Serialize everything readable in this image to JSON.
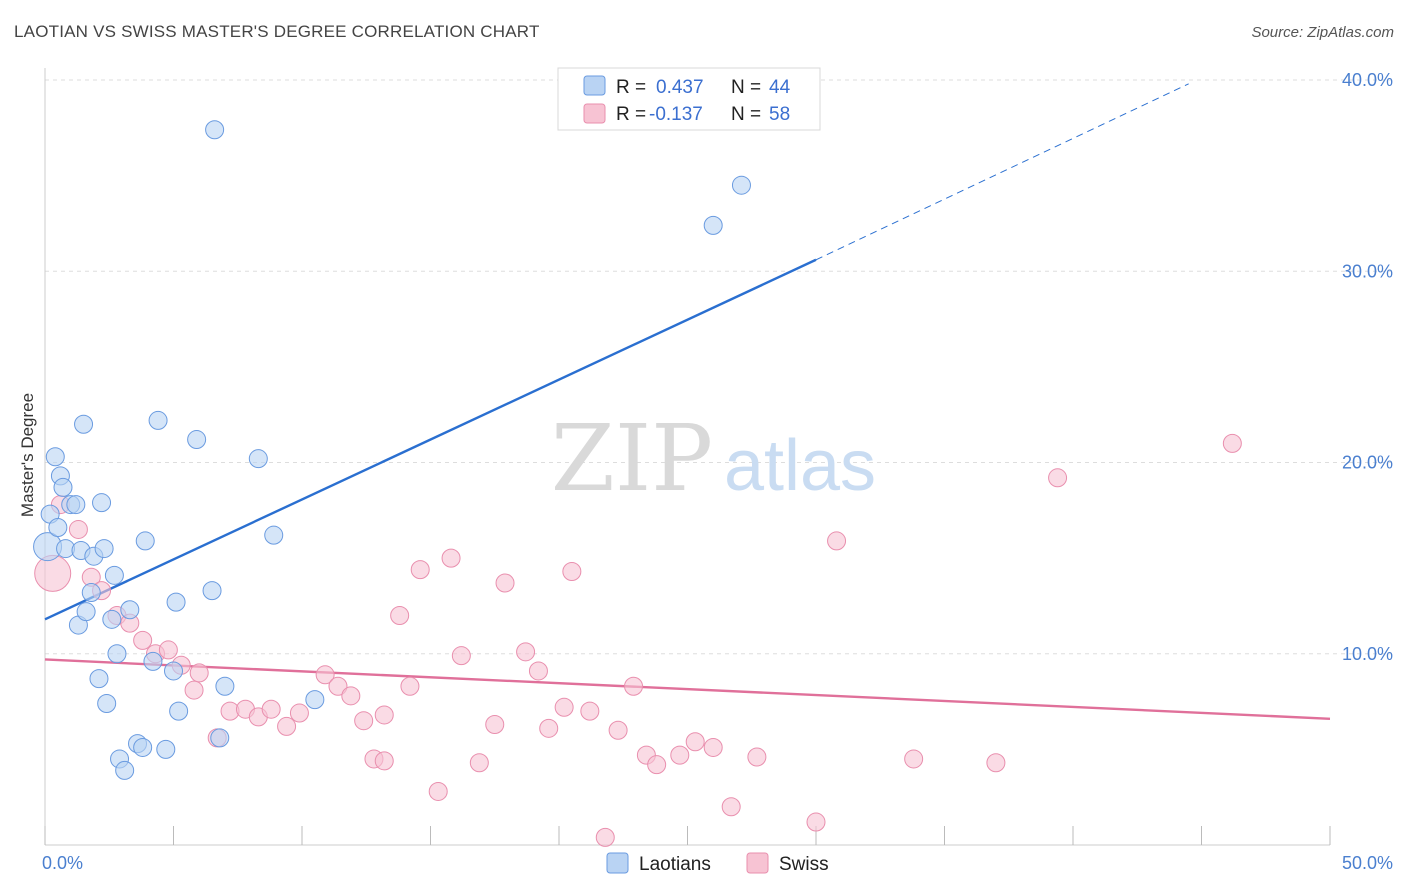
{
  "header": {
    "title": "LAOTIAN VS SWISS MASTER'S DEGREE CORRELATION CHART",
    "source": "Source: ZipAtlas.com"
  },
  "watermark": {
    "zip": "ZIP",
    "atlas": "atlas"
  },
  "legend": {
    "rows": [
      {
        "r_label": "R =",
        "r_value": "0.437",
        "n_label": "N =",
        "n_value": "44"
      },
      {
        "r_label": "R =",
        "r_value": "-0.137",
        "n_label": "N =",
        "n_value": "58"
      }
    ]
  },
  "colors": {
    "laotians_fill": "#b9d3f3",
    "laotians_stroke": "#6a9be0",
    "laotians_line": "#2a6fd0",
    "swiss_fill": "#f7c3d3",
    "swiss_stroke": "#e98fae",
    "swiss_line": "#e0709a",
    "grid": "#dddddd",
    "tick_text": "#4a7fcf"
  },
  "chart_data": {
    "type": "scatter",
    "title": "LAOTIAN VS SWISS MASTER'S DEGREE CORRELATION CHART",
    "ylabel": "Master's Degree",
    "xlabel": "",
    "xlim": [
      0,
      50
    ],
    "ylim": [
      0,
      40
    ],
    "x_ticks": [
      "0.0%",
      "50.0%"
    ],
    "y_ticks": [
      {
        "value": 10,
        "label": "10.0%"
      },
      {
        "value": 20,
        "label": "20.0%"
      },
      {
        "value": 30,
        "label": "30.0%"
      },
      {
        "value": 40,
        "label": "40.0%"
      }
    ],
    "grid": true,
    "legend_position": "top-center",
    "series": [
      {
        "name": "Laotians",
        "r": 0.437,
        "n": 44,
        "trend": {
          "x0": 0,
          "y0": 11.8,
          "x1": 30,
          "y1": 30.6,
          "dash_to_x": 44.5,
          "dash_to_y": 39.8
        },
        "points": [
          {
            "x": 0.1,
            "y": 15.6,
            "s": 14
          },
          {
            "x": 0.2,
            "y": 17.3,
            "s": 9
          },
          {
            "x": 0.4,
            "y": 20.3,
            "s": 9
          },
          {
            "x": 0.5,
            "y": 16.6,
            "s": 9
          },
          {
            "x": 0.6,
            "y": 19.3,
            "s": 9
          },
          {
            "x": 0.7,
            "y": 18.7,
            "s": 9
          },
          {
            "x": 0.8,
            "y": 15.5,
            "s": 9
          },
          {
            "x": 1.0,
            "y": 17.8,
            "s": 9
          },
          {
            "x": 1.3,
            "y": 11.5,
            "s": 9
          },
          {
            "x": 1.4,
            "y": 15.4,
            "s": 9
          },
          {
            "x": 1.5,
            "y": 22.0,
            "s": 9
          },
          {
            "x": 1.6,
            "y": 12.2,
            "s": 9
          },
          {
            "x": 1.8,
            "y": 13.2,
            "s": 9
          },
          {
            "x": 1.9,
            "y": 15.1,
            "s": 9
          },
          {
            "x": 2.1,
            "y": 8.7,
            "s": 9
          },
          {
            "x": 2.2,
            "y": 17.9,
            "s": 9
          },
          {
            "x": 2.3,
            "y": 15.5,
            "s": 9
          },
          {
            "x": 2.4,
            "y": 7.4,
            "s": 9
          },
          {
            "x": 2.6,
            "y": 11.8,
            "s": 9
          },
          {
            "x": 2.7,
            "y": 14.1,
            "s": 9
          },
          {
            "x": 2.8,
            "y": 10.0,
            "s": 9
          },
          {
            "x": 2.9,
            "y": 4.5,
            "s": 9
          },
          {
            "x": 3.1,
            "y": 3.9,
            "s": 9
          },
          {
            "x": 3.3,
            "y": 12.3,
            "s": 9
          },
          {
            "x": 3.6,
            "y": 5.3,
            "s": 9
          },
          {
            "x": 3.8,
            "y": 5.1,
            "s": 9
          },
          {
            "x": 3.9,
            "y": 15.9,
            "s": 9
          },
          {
            "x": 4.2,
            "y": 9.6,
            "s": 9
          },
          {
            "x": 4.4,
            "y": 22.2,
            "s": 9
          },
          {
            "x": 4.7,
            "y": 5.0,
            "s": 9
          },
          {
            "x": 5.0,
            "y": 9.1,
            "s": 9
          },
          {
            "x": 5.1,
            "y": 12.7,
            "s": 9
          },
          {
            "x": 5.2,
            "y": 7.0,
            "s": 9
          },
          {
            "x": 5.9,
            "y": 21.2,
            "s": 9
          },
          {
            "x": 6.5,
            "y": 13.3,
            "s": 9
          },
          {
            "x": 6.6,
            "y": 37.4,
            "s": 9
          },
          {
            "x": 6.8,
            "y": 5.6,
            "s": 9
          },
          {
            "x": 7.0,
            "y": 8.3,
            "s": 9
          },
          {
            "x": 8.3,
            "y": 20.2,
            "s": 9
          },
          {
            "x": 8.9,
            "y": 16.2,
            "s": 9
          },
          {
            "x": 10.5,
            "y": 7.6,
            "s": 9
          },
          {
            "x": 26.0,
            "y": 32.4,
            "s": 9
          },
          {
            "x": 27.1,
            "y": 34.5,
            "s": 9
          },
          {
            "x": 1.2,
            "y": 17.8,
            "s": 9
          }
        ]
      },
      {
        "name": "Swiss",
        "r": -0.137,
        "n": 58,
        "trend": {
          "x0": 0,
          "y0": 9.7,
          "x1": 50,
          "y1": 6.6
        },
        "points": [
          {
            "x": 0.3,
            "y": 14.2,
            "s": 18
          },
          {
            "x": 0.6,
            "y": 17.8,
            "s": 9
          },
          {
            "x": 1.3,
            "y": 16.5,
            "s": 9
          },
          {
            "x": 1.8,
            "y": 14.0,
            "s": 9
          },
          {
            "x": 2.2,
            "y": 13.3,
            "s": 9
          },
          {
            "x": 2.8,
            "y": 12.0,
            "s": 9
          },
          {
            "x": 3.3,
            "y": 11.6,
            "s": 9
          },
          {
            "x": 3.8,
            "y": 10.7,
            "s": 9
          },
          {
            "x": 4.3,
            "y": 10.0,
            "s": 9
          },
          {
            "x": 4.8,
            "y": 10.2,
            "s": 9
          },
          {
            "x": 5.3,
            "y": 9.4,
            "s": 9
          },
          {
            "x": 6.0,
            "y": 9.0,
            "s": 9
          },
          {
            "x": 5.8,
            "y": 8.1,
            "s": 9
          },
          {
            "x": 7.2,
            "y": 7.0,
            "s": 9
          },
          {
            "x": 7.8,
            "y": 7.1,
            "s": 9
          },
          {
            "x": 8.3,
            "y": 6.7,
            "s": 9
          },
          {
            "x": 8.8,
            "y": 7.1,
            "s": 9
          },
          {
            "x": 9.4,
            "y": 6.2,
            "s": 9
          },
          {
            "x": 9.9,
            "y": 6.9,
            "s": 9
          },
          {
            "x": 10.9,
            "y": 8.9,
            "s": 9
          },
          {
            "x": 11.4,
            "y": 8.3,
            "s": 9
          },
          {
            "x": 11.9,
            "y": 7.8,
            "s": 9
          },
          {
            "x": 12.4,
            "y": 6.5,
            "s": 9
          },
          {
            "x": 12.8,
            "y": 4.5,
            "s": 9
          },
          {
            "x": 13.2,
            "y": 6.8,
            "s": 9
          },
          {
            "x": 13.8,
            "y": 12.0,
            "s": 9
          },
          {
            "x": 14.2,
            "y": 8.3,
            "s": 9
          },
          {
            "x": 14.6,
            "y": 14.4,
            "s": 9
          },
          {
            "x": 15.3,
            "y": 2.8,
            "s": 9
          },
          {
            "x": 15.8,
            "y": 15.0,
            "s": 9
          },
          {
            "x": 16.2,
            "y": 9.9,
            "s": 9
          },
          {
            "x": 16.9,
            "y": 4.3,
            "s": 9
          },
          {
            "x": 17.5,
            "y": 6.3,
            "s": 9
          },
          {
            "x": 17.9,
            "y": 13.7,
            "s": 9
          },
          {
            "x": 18.7,
            "y": 10.1,
            "s": 9
          },
          {
            "x": 19.2,
            "y": 9.1,
            "s": 9
          },
          {
            "x": 19.6,
            "y": 6.1,
            "s": 9
          },
          {
            "x": 20.2,
            "y": 7.2,
            "s": 9
          },
          {
            "x": 20.5,
            "y": 14.3,
            "s": 9
          },
          {
            "x": 21.2,
            "y": 7.0,
            "s": 9
          },
          {
            "x": 21.8,
            "y": 0.4,
            "s": 9
          },
          {
            "x": 22.3,
            "y": 6.0,
            "s": 9
          },
          {
            "x": 22.9,
            "y": 8.3,
            "s": 9
          },
          {
            "x": 23.4,
            "y": 4.7,
            "s": 9
          },
          {
            "x": 23.8,
            "y": 4.2,
            "s": 9
          },
          {
            "x": 24.7,
            "y": 4.7,
            "s": 9
          },
          {
            "x": 25.3,
            "y": 5.4,
            "s": 9
          },
          {
            "x": 26.0,
            "y": 5.1,
            "s": 9
          },
          {
            "x": 26.7,
            "y": 2.0,
            "s": 9
          },
          {
            "x": 27.7,
            "y": 4.6,
            "s": 9
          },
          {
            "x": 30.0,
            "y": 1.2,
            "s": 9
          },
          {
            "x": 30.8,
            "y": 15.9,
            "s": 9
          },
          {
            "x": 33.8,
            "y": 4.5,
            "s": 9
          },
          {
            "x": 37.0,
            "y": 4.3,
            "s": 9
          },
          {
            "x": 39.4,
            "y": 19.2,
            "s": 9
          },
          {
            "x": 46.2,
            "y": 21.0,
            "s": 9
          },
          {
            "x": 13.2,
            "y": 4.4,
            "s": 9
          },
          {
            "x": 6.7,
            "y": 5.6,
            "s": 9
          }
        ]
      }
    ]
  }
}
